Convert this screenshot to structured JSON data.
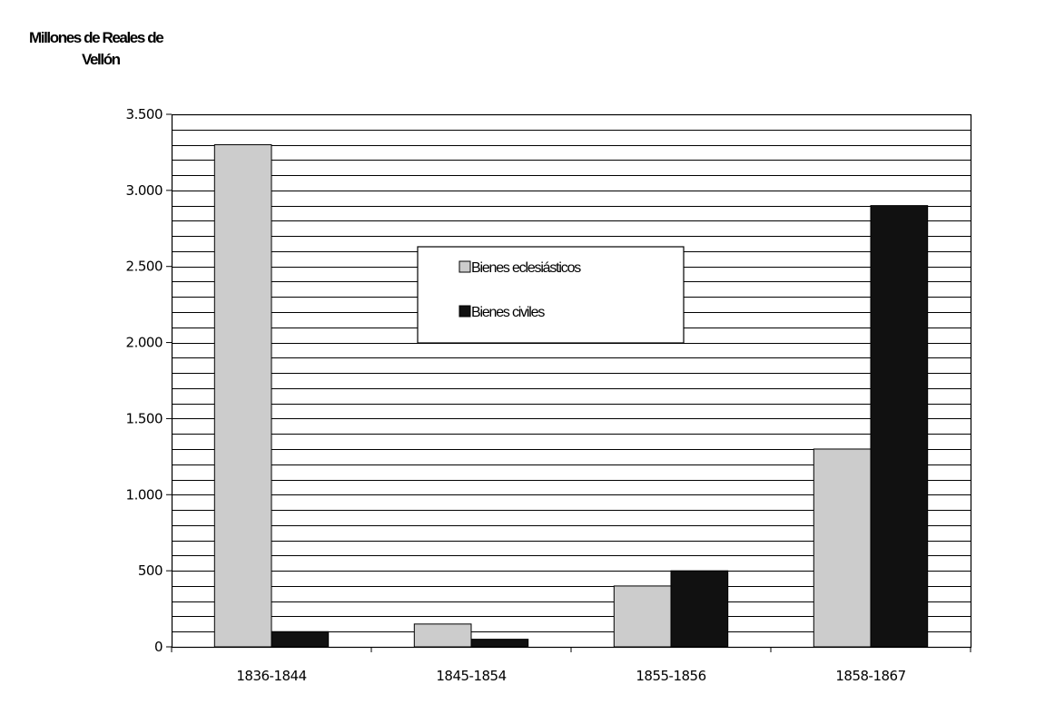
{
  "chart_data": {
    "type": "bar",
    "ylabel_line1": "Millones de Reales de",
    "ylabel_line2": "Vellón",
    "categories": [
      "1836-1844",
      "1845-1854",
      "1855-1856",
      "1858-1867"
    ],
    "series": [
      {
        "name": "Bienes eclesiásticos",
        "values": [
          3300,
          150,
          400,
          1300
        ],
        "color": "#cccccc"
      },
      {
        "name": "Bienes civiles",
        "values": [
          100,
          50,
          500,
          2900
        ],
        "color": "#111111"
      }
    ],
    "ylim": [
      0,
      3500
    ],
    "yticks": [
      0,
      500,
      1000,
      1500,
      2000,
      2500,
      3000,
      3500
    ],
    "ytick_labels": [
      "0",
      "500",
      "1.000",
      "1.500",
      "2.000",
      "2.500",
      "3.000",
      "3.500"
    ],
    "minor_grid_step": 100,
    "grid": true,
    "legend_position": "upper-center"
  }
}
